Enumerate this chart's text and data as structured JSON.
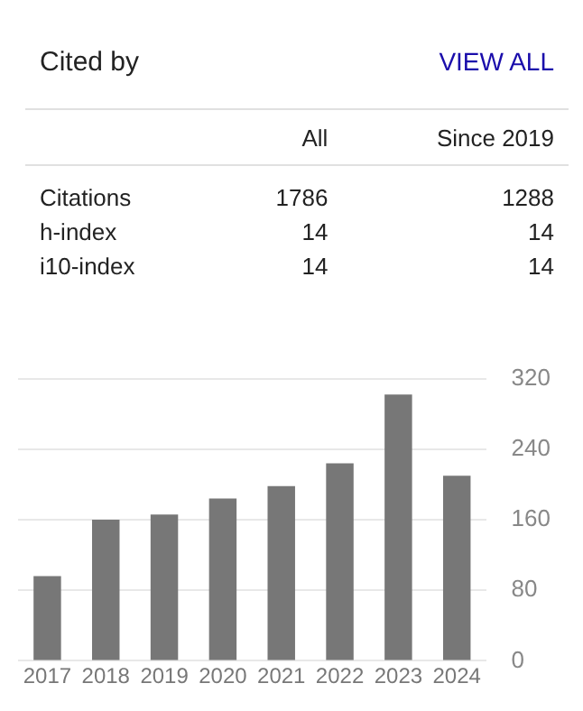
{
  "chart_data": {
    "type": "bar",
    "title": "Cited by",
    "annotations": [
      "VIEW ALL",
      "All",
      "Since 2019",
      "Citations",
      "1786",
      "1288",
      "h-index",
      "14",
      "14",
      "i10-index",
      "14",
      "14"
    ],
    "categories": [
      "2017",
      "2018",
      "2019",
      "2020",
      "2021",
      "2022",
      "2023",
      "2024"
    ],
    "values": [
      96,
      160,
      166,
      184,
      198,
      224,
      302,
      210
    ],
    "color": "#777777",
    "ylim": [
      0,
      320
    ],
    "yticks": [
      0,
      80,
      160,
      240,
      320
    ],
    "grid": "y"
  }
}
